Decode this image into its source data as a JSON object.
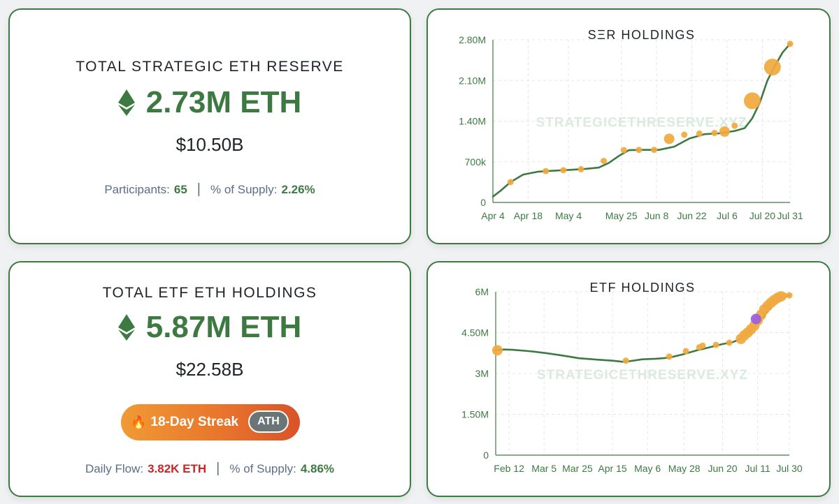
{
  "ser_card": {
    "title": "TOTAL STRATEGIC ETH RESERVE",
    "amount": "2.73M ETH",
    "usd": "$10.50B",
    "participants_label": "Participants:",
    "participants_value": "65",
    "supply_label": "% of Supply:",
    "supply_value": "2.26%"
  },
  "etf_card": {
    "title": "TOTAL ETF ETH HOLDINGS",
    "amount": "5.87M ETH",
    "usd": "$22.58B",
    "streak_label": "18-Day Streak",
    "streak_icon": "fire-icon",
    "ath_badge": "ATH",
    "daily_flow_label": "Daily Flow:",
    "daily_flow_value": "3.82K ETH",
    "supply_label": "% of Supply:",
    "supply_value": "4.86%"
  },
  "colors": {
    "green": "#3d7a42",
    "orange": "#f0a93e",
    "purple": "#9b5de5",
    "red": "#c62828"
  },
  "chart_data": [
    {
      "id": "ser",
      "type": "line",
      "title": "SΞR HOLDINGS",
      "watermark": "STRATEGICETHRESERVE.XYZ",
      "ylim": [
        0,
        2800000
      ],
      "y_ticks": [
        {
          "value": 0,
          "label": "0"
        },
        {
          "value": 700000,
          "label": "700k"
        },
        {
          "value": 1400000,
          "label": "1.40M"
        },
        {
          "value": 2100000,
          "label": "2.10M"
        },
        {
          "value": 2800000,
          "label": "2.80M"
        }
      ],
      "xlim": [
        0,
        118
      ],
      "x_ticks": [
        {
          "value": 0,
          "label": "Apr 4"
        },
        {
          "value": 14,
          "label": "Apr 18"
        },
        {
          "value": 30,
          "label": "May 4"
        },
        {
          "value": 51,
          "label": "May 25"
        },
        {
          "value": 65,
          "label": "Jun 8"
        },
        {
          "value": 79,
          "label": "Jun 22"
        },
        {
          "value": 93,
          "label": "Jul 6"
        },
        {
          "value": 107,
          "label": "Jul 20"
        },
        {
          "value": 118,
          "label": "Jul 31"
        }
      ],
      "line": [
        [
          0,
          100000
        ],
        [
          3,
          200000
        ],
        [
          7,
          350000
        ],
        [
          12,
          480000
        ],
        [
          18,
          530000
        ],
        [
          24,
          545000
        ],
        [
          30,
          560000
        ],
        [
          36,
          575000
        ],
        [
          42,
          600000
        ],
        [
          46,
          680000
        ],
        [
          50,
          800000
        ],
        [
          54,
          900000
        ],
        [
          60,
          905000
        ],
        [
          66,
          905000
        ],
        [
          72,
          960000
        ],
        [
          78,
          1100000
        ],
        [
          84,
          1175000
        ],
        [
          90,
          1190000
        ],
        [
          96,
          1230000
        ],
        [
          100,
          1280000
        ],
        [
          103,
          1450000
        ],
        [
          106,
          1720000
        ],
        [
          109,
          2100000
        ],
        [
          112,
          2350000
        ],
        [
          115,
          2580000
        ],
        [
          118,
          2730000
        ]
      ],
      "markers": [
        {
          "x": 7,
          "y": 350000,
          "size": "s"
        },
        {
          "x": 21,
          "y": 540000,
          "size": "s"
        },
        {
          "x": 28,
          "y": 555000,
          "size": "s"
        },
        {
          "x": 35,
          "y": 572000,
          "size": "s"
        },
        {
          "x": 44,
          "y": 715000,
          "size": "s"
        },
        {
          "x": 52,
          "y": 900000,
          "size": "s"
        },
        {
          "x": 58,
          "y": 905000,
          "size": "s"
        },
        {
          "x": 64,
          "y": 905000,
          "size": "s"
        },
        {
          "x": 70,
          "y": 1095000,
          "size": "m"
        },
        {
          "x": 76,
          "y": 1165000,
          "size": "s"
        },
        {
          "x": 82,
          "y": 1185000,
          "size": "s"
        },
        {
          "x": 88,
          "y": 1195000,
          "size": "s"
        },
        {
          "x": 92,
          "y": 1220000,
          "size": "m"
        },
        {
          "x": 96,
          "y": 1320000,
          "size": "s"
        },
        {
          "x": 103,
          "y": 1750000,
          "size": "l"
        },
        {
          "x": 111,
          "y": 2330000,
          "size": "l"
        },
        {
          "x": 118,
          "y": 2730000,
          "size": "s"
        }
      ]
    },
    {
      "id": "etf",
      "type": "line",
      "title": "ETF HOLDINGS",
      "watermark": "STRATEGICETHRESERVE.XYZ",
      "ylim": [
        0,
        6000000
      ],
      "y_ticks": [
        {
          "value": 0,
          "label": "0"
        },
        {
          "value": 1500000,
          "label": "1.50M"
        },
        {
          "value": 3000000,
          "label": "3M"
        },
        {
          "value": 4500000,
          "label": "4.50M"
        },
        {
          "value": 6000000,
          "label": "6M"
        }
      ],
      "xlim": [
        0,
        176
      ],
      "x_ticks": [
        {
          "value": 8,
          "label": "Feb 12"
        },
        {
          "value": 29,
          "label": "Mar 5"
        },
        {
          "value": 49,
          "label": "Mar 25"
        },
        {
          "value": 70,
          "label": "Apr 15"
        },
        {
          "value": 91,
          "label": "May 6"
        },
        {
          "value": 113,
          "label": "May 28"
        },
        {
          "value": 136,
          "label": "Jun 20"
        },
        {
          "value": 157,
          "label": "Jul 11"
        },
        {
          "value": 176,
          "label": "Jul 30"
        }
      ],
      "line": [
        [
          0,
          3850000
        ],
        [
          5,
          3880000
        ],
        [
          10,
          3870000
        ],
        [
          20,
          3820000
        ],
        [
          30,
          3750000
        ],
        [
          40,
          3660000
        ],
        [
          50,
          3560000
        ],
        [
          60,
          3510000
        ],
        [
          70,
          3470000
        ],
        [
          76,
          3430000
        ],
        [
          80,
          3450000
        ],
        [
          88,
          3520000
        ],
        [
          96,
          3540000
        ],
        [
          104,
          3580000
        ],
        [
          112,
          3700000
        ],
        [
          120,
          3840000
        ],
        [
          128,
          3960000
        ],
        [
          136,
          4080000
        ],
        [
          142,
          4150000
        ],
        [
          146,
          4250000
        ],
        [
          150,
          4450000
        ],
        [
          154,
          4650000
        ],
        [
          157,
          4820000
        ],
        [
          160,
          5050000
        ],
        [
          163,
          5300000
        ],
        [
          166,
          5520000
        ],
        [
          169,
          5680000
        ],
        [
          172,
          5800000
        ],
        [
          176,
          5870000
        ]
      ],
      "markers": [
        {
          "x": 1,
          "y": 3850000,
          "size": "m"
        },
        {
          "x": 78,
          "y": 3470000,
          "size": "s"
        },
        {
          "x": 104,
          "y": 3620000,
          "size": "s"
        },
        {
          "x": 114,
          "y": 3820000,
          "size": "s"
        },
        {
          "x": 122,
          "y": 3960000,
          "size": "s"
        },
        {
          "x": 124,
          "y": 4020000,
          "size": "s"
        },
        {
          "x": 132,
          "y": 4050000,
          "size": "s"
        },
        {
          "x": 140,
          "y": 4130000,
          "size": "s"
        },
        {
          "x": 147,
          "y": 4270000,
          "size": "m"
        },
        {
          "x": 149,
          "y": 4400000,
          "size": "m"
        },
        {
          "x": 151,
          "y": 4500000,
          "size": "m"
        },
        {
          "x": 153,
          "y": 4620000,
          "size": "m"
        },
        {
          "x": 155,
          "y": 4750000,
          "size": "m"
        },
        {
          "x": 157,
          "y": 4950000,
          "size": "m"
        },
        {
          "x": 159,
          "y": 5150000,
          "size": "m"
        },
        {
          "x": 161,
          "y": 5350000,
          "size": "m"
        },
        {
          "x": 163,
          "y": 5480000,
          "size": "m"
        },
        {
          "x": 165,
          "y": 5600000,
          "size": "m"
        },
        {
          "x": 167,
          "y": 5700000,
          "size": "m"
        },
        {
          "x": 169,
          "y": 5780000,
          "size": "m"
        },
        {
          "x": 171,
          "y": 5830000,
          "size": "m"
        },
        {
          "x": 173,
          "y": 5860000,
          "size": "s"
        },
        {
          "x": 176,
          "y": 5870000,
          "size": "s"
        },
        {
          "x": 156,
          "y": 5000000,
          "size": "m",
          "color": "purple"
        }
      ]
    }
  ]
}
